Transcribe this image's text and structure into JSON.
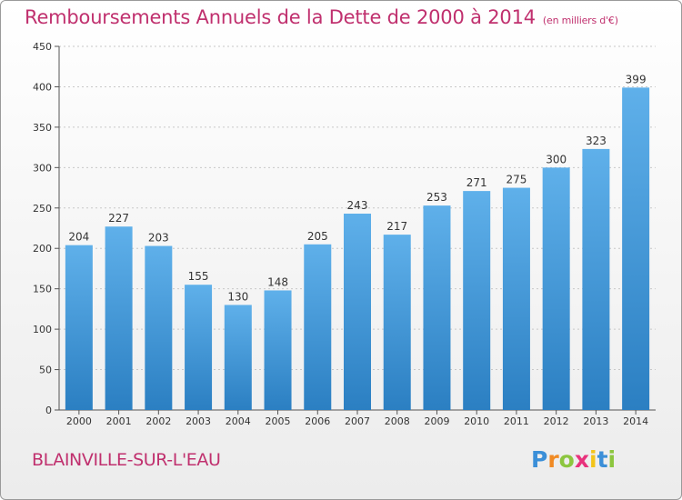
{
  "title": "Remboursements Annuels de la Dette de 2000 à 2014",
  "subtitle": "(en milliers d'€)",
  "commune": "BLAINVILLE-SUR-L'EAU",
  "logo": {
    "letters": [
      "P",
      "r",
      "o",
      "x",
      "i",
      "t",
      "i"
    ],
    "colors": [
      "#3b8fd8",
      "#f08a24",
      "#8cc63f",
      "#e8327c",
      "#f3c41b",
      "#3b8fd8",
      "#8cc63f"
    ]
  },
  "colors": {
    "bar_light": "#5fb0ea",
    "bar_dark": "#2b7fc2",
    "title": "#c0306e",
    "grid": "#c8c8c8",
    "axis": "#555555"
  },
  "chart_data": {
    "type": "bar",
    "categories": [
      "2000",
      "2001",
      "2002",
      "2003",
      "2004",
      "2005",
      "2006",
      "2007",
      "2008",
      "2009",
      "2010",
      "2011",
      "2012",
      "2013",
      "2014"
    ],
    "values": [
      204,
      227,
      203,
      155,
      130,
      148,
      205,
      243,
      217,
      253,
      271,
      275,
      300,
      323,
      399
    ],
    "ylim": [
      0,
      450
    ],
    "yticks": [
      0,
      50,
      100,
      150,
      200,
      250,
      300,
      350,
      400,
      450
    ],
    "grid": true,
    "xlabel": "",
    "ylabel": ""
  }
}
